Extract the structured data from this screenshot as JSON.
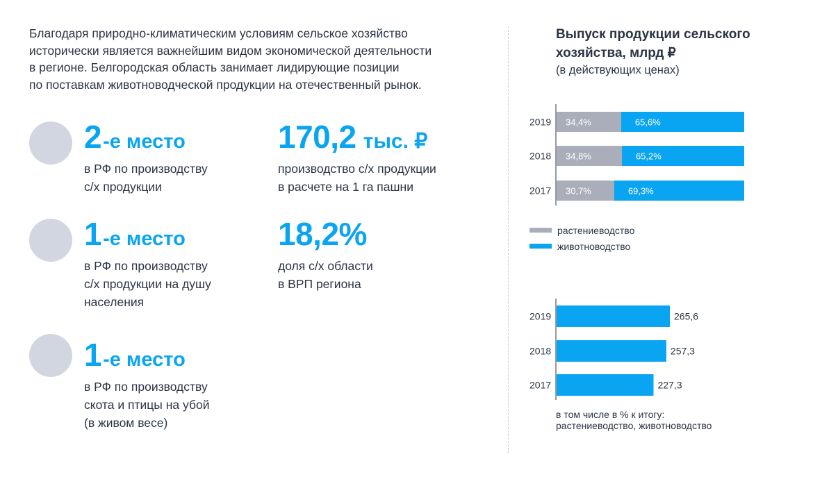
{
  "intro": {
    "lines": [
      "Благодаря природно-климатическим условиям сельское хозяйство",
      "исторически является важнейшим видом экономической деятельности",
      "в регионе. Белгородская область занимает лидирующие позиции",
      "по поставкам животноводческой продукции на отечественный рынок."
    ]
  },
  "stats": [
    {
      "num": "2",
      "suffix": "-е место",
      "lines": [
        "в РФ по производству",
        "с/х продукции"
      ]
    },
    {
      "num": "1",
      "suffix": "-е место",
      "lines": [
        "в РФ по производству",
        "с/х продукции на душу",
        "населения"
      ]
    },
    {
      "num": "1",
      "suffix": "-е место",
      "lines": [
        "в РФ по производству",
        "скота и птицы на убой",
        "(в живом весе)"
      ]
    },
    {
      "num": "170,2",
      "unit": "тыс. ₽",
      "lines": [
        "производство с/х продукции",
        "в расчете на 1 га пашни"
      ]
    },
    {
      "num": "18,2%",
      "lines": [
        "доля с/х области",
        "в ВРП региона"
      ]
    }
  ],
  "chart_title": {
    "lines": [
      "Выпуск продукции сельского",
      "хозяйства, млрд ₽"
    ],
    "subtitle": "(в действующих ценах)"
  },
  "colors": {
    "plant": "#a9aeba",
    "animal": "#0aa5f2"
  },
  "chart_data": [
    {
      "type": "bar",
      "stacked": true,
      "orientation": "horizontal",
      "categories": [
        "2019",
        "2018",
        "2017"
      ],
      "series": [
        {
          "name": "растениеводство",
          "values": [
            34.4,
            34.8,
            30.7
          ],
          "labels": [
            "34,4%",
            "34,8%",
            "30,7%"
          ]
        },
        {
          "name": "животноводство",
          "values": [
            65.6,
            65.2,
            69.3
          ],
          "labels": [
            "65,6%",
            "65,2%",
            "69,3%"
          ]
        }
      ],
      "legend": "bottom-left"
    },
    {
      "type": "bar",
      "orientation": "horizontal",
      "categories": [
        "2019",
        "2018",
        "2017"
      ],
      "values": [
        265.6,
        257.3,
        227.3
      ],
      "labels": [
        "265,6",
        "257,3",
        "227,3"
      ],
      "xlim": [
        0,
        300
      ],
      "note": [
        "в том числе в % к итогу:",
        "растениеводство, животноводство"
      ]
    }
  ]
}
